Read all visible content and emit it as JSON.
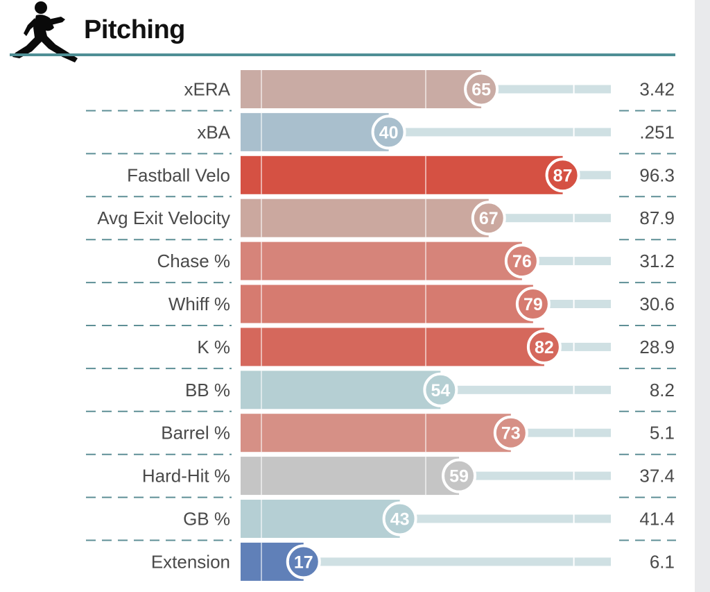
{
  "header": {
    "title": "Pitching",
    "icon": "pitcher-icon"
  },
  "colors": {
    "rule": "#4f8f95",
    "track": "#cfe0e3",
    "dash": "#5e8f96",
    "text": "#4a4a4a"
  },
  "chart_data": {
    "type": "bar",
    "title": "Pitching",
    "xlim": [
      0,
      100
    ],
    "grid": true,
    "categories": [
      "xERA",
      "xBA",
      "Fastball Velo",
      "Avg Exit Velocity",
      "Chase %",
      "Whiff %",
      "K %",
      "BB %",
      "Barrel %",
      "Hard-Hit %",
      "GB %",
      "Extension"
    ],
    "percentiles": [
      65,
      40,
      87,
      67,
      76,
      79,
      82,
      54,
      73,
      59,
      43,
      17
    ],
    "stat_values": [
      "3.42",
      ".251",
      "96.3",
      "87.9",
      "31.2",
      "30.6",
      "28.9",
      "8.2",
      "5.1",
      "37.4",
      "41.4",
      "6.1"
    ],
    "bar_colors": [
      "#c9aba4",
      "#a9bfcd",
      "#d55143",
      "#cba89f",
      "#d6847a",
      "#d67b70",
      "#d5685c",
      "#b5cfd3",
      "#d69086",
      "#c5c5c5",
      "#b5cfd4",
      "#6080b8"
    ]
  }
}
